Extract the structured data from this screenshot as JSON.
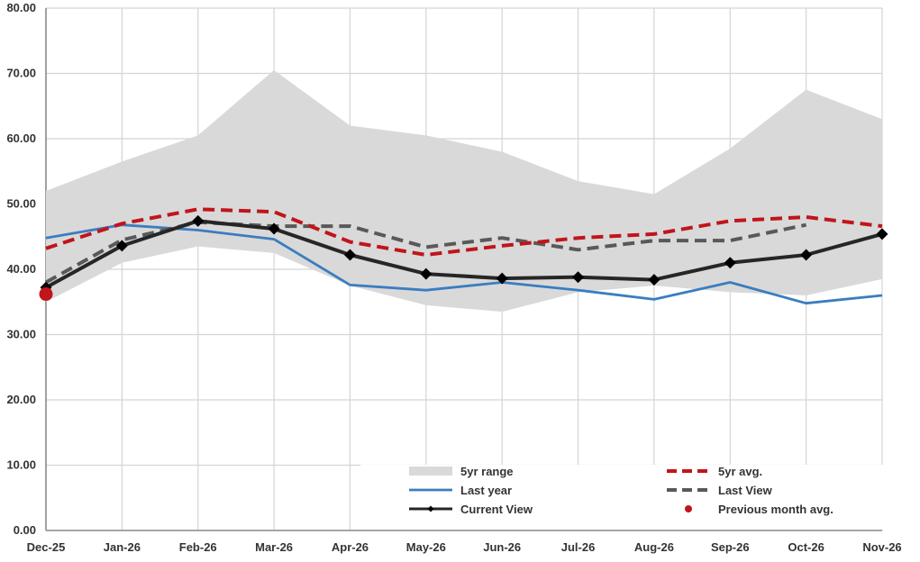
{
  "chart_data": {
    "type": "line",
    "title": "",
    "xlabel": "",
    "ylabel": "",
    "ylim": [
      0,
      80
    ],
    "y_ticks": [
      "0.00",
      "10.00",
      "20.00",
      "30.00",
      "40.00",
      "50.00",
      "60.00",
      "70.00",
      "80.00"
    ],
    "y_tick_values": [
      0,
      10,
      20,
      30,
      40,
      50,
      60,
      70,
      80
    ],
    "categories": [
      "Dec-25",
      "Jan-26",
      "Feb-26",
      "Mar-26",
      "Apr-26",
      "May-26",
      "Jun-26",
      "Jul-26",
      "Aug-26",
      "Sep-26",
      "Oct-26",
      "Nov-26"
    ],
    "grid": true,
    "legend_position": "bottom-right",
    "range": {
      "name": "5yr range",
      "color": "#d9d9d9",
      "min": [
        35.0,
        41.0,
        43.5,
        42.5,
        37.5,
        34.5,
        33.5,
        36.5,
        37.5,
        36.5,
        36.0,
        38.5
      ],
      "max": [
        52.0,
        56.5,
        60.5,
        70.5,
        62.0,
        60.5,
        58.0,
        53.5,
        51.5,
        58.5,
        67.5,
        63.0
      ]
    },
    "series": [
      {
        "name": "Last year",
        "color": "#3a7dc0",
        "style": "solid",
        "values": [
          44.8,
          46.8,
          46.0,
          44.6,
          37.6,
          36.8,
          38.0,
          36.8,
          35.4,
          38.0,
          34.8,
          36.0
        ]
      },
      {
        "name": "5yr avg.",
        "color": "#c0151b",
        "style": "dashed",
        "values": [
          43.2,
          47.0,
          49.2,
          48.8,
          44.2,
          42.2,
          43.6,
          44.8,
          45.4,
          47.4,
          48.0,
          46.6
        ]
      },
      {
        "name": "Last View",
        "color": "#595959",
        "style": "dashed",
        "values": [
          38.0,
          44.5,
          47.2,
          46.6,
          46.6,
          43.4,
          44.8,
          43.0,
          44.4,
          44.4,
          46.8,
          null
        ]
      },
      {
        "name": "Current View",
        "color": "#262626",
        "style": "solid-markers",
        "values": [
          37.2,
          43.6,
          47.4,
          46.2,
          42.2,
          39.3,
          38.6,
          38.8,
          38.4,
          41.0,
          42.2,
          45.4
        ]
      }
    ],
    "previous_month_avg": {
      "name": "Previous month avg.",
      "color": "#c0151b",
      "category": "Dec-25",
      "value": 36.2
    },
    "legend": [
      "5yr range",
      "5yr avg.",
      "Last year",
      "Last View",
      "Current View",
      "Previous month avg."
    ]
  }
}
